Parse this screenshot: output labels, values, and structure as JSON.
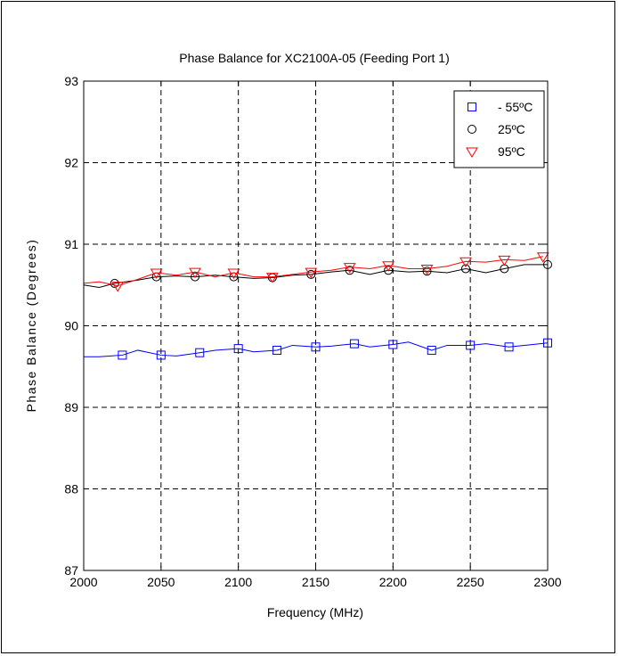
{
  "chart_data": {
    "type": "line",
    "title": "Phase Balance for XC2100A-05 (Feeding Port 1)",
    "xlabel": "Frequency (MHz)",
    "ylabel": "Phase Balance (Degrees)",
    "xlim": [
      2000,
      2300
    ],
    "ylim": [
      87,
      93
    ],
    "xticks": [
      2000,
      2050,
      2100,
      2150,
      2200,
      2250,
      2300
    ],
    "yticks": [
      87,
      88,
      89,
      90,
      91,
      92,
      93
    ],
    "grid": true,
    "grid_style": "dashed",
    "legend_position": "top-right",
    "series": [
      {
        "name": "- 55ºC",
        "color": "#0000ff",
        "marker": "square",
        "x": [
          2000,
          2010,
          2025,
          2035,
          2050,
          2060,
          2075,
          2085,
          2100,
          2110,
          2125,
          2135,
          2150,
          2160,
          2175,
          2185,
          2200,
          2210,
          2225,
          2235,
          2250,
          2260,
          2275,
          2285,
          2300
        ],
        "values": [
          89.62,
          89.62,
          89.64,
          89.7,
          89.64,
          89.63,
          89.67,
          89.7,
          89.72,
          89.68,
          89.7,
          89.76,
          89.74,
          89.75,
          89.78,
          89.74,
          89.77,
          89.8,
          89.7,
          89.76,
          89.76,
          89.78,
          89.74,
          89.76,
          89.79
        ]
      },
      {
        "name": "25ºC",
        "color": "#000000",
        "marker": "circle",
        "x": [
          2000,
          2010,
          2020,
          2035,
          2047,
          2060,
          2072,
          2085,
          2097,
          2110,
          2122,
          2135,
          2147,
          2160,
          2172,
          2185,
          2197,
          2210,
          2222,
          2235,
          2247,
          2260,
          2272,
          2285,
          2300
        ],
        "values": [
          90.5,
          90.47,
          90.52,
          90.56,
          90.6,
          90.61,
          90.6,
          90.62,
          90.6,
          90.58,
          90.59,
          90.62,
          90.63,
          90.66,
          90.68,
          90.63,
          90.68,
          90.66,
          90.67,
          90.65,
          90.7,
          90.65,
          90.7,
          90.75,
          90.75
        ]
      },
      {
        "name": "95ºC",
        "color": "#ff0000",
        "marker": "triangle-down",
        "x": [
          2000,
          2010,
          2022,
          2035,
          2047,
          2060,
          2072,
          2085,
          2097,
          2110,
          2122,
          2135,
          2147,
          2160,
          2172,
          2185,
          2197,
          2210,
          2222,
          2235,
          2247,
          2260,
          2272,
          2285,
          2297
        ],
        "values": [
          90.52,
          90.54,
          90.49,
          90.57,
          90.65,
          90.62,
          90.66,
          90.6,
          90.65,
          90.6,
          90.6,
          90.63,
          90.66,
          90.68,
          90.72,
          90.7,
          90.74,
          90.7,
          90.7,
          90.73,
          90.79,
          90.78,
          90.81,
          90.8,
          90.85
        ]
      }
    ]
  }
}
